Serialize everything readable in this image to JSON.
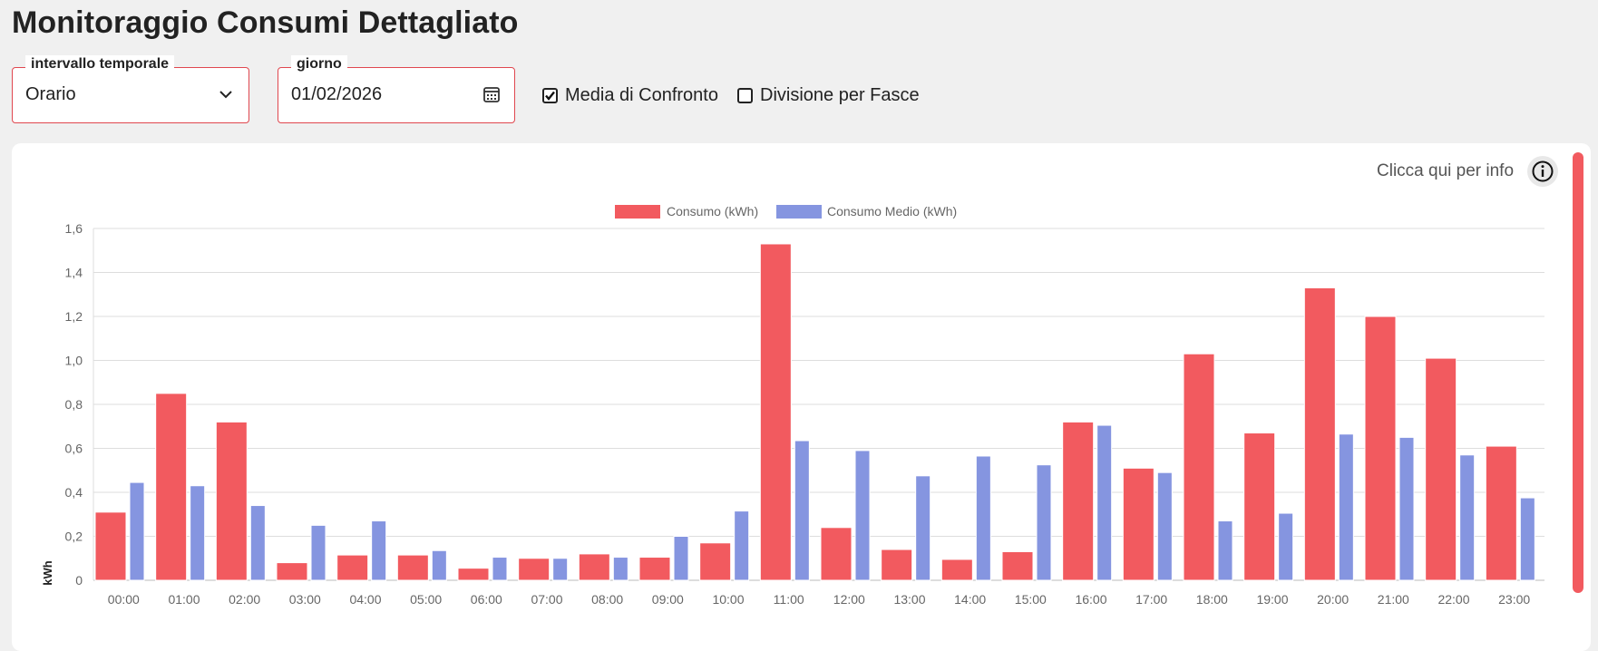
{
  "title": "Monitoraggio Consumi Dettagliato",
  "controls": {
    "interval": {
      "label": "intervallo temporale",
      "value": "Orario"
    },
    "day": {
      "label": "giorno",
      "value": "01/02/2026"
    },
    "media_confronto": {
      "label": "Media di Confronto",
      "checked": true
    },
    "divisione_fasce": {
      "label": "Divisione per Fasce",
      "checked": false
    }
  },
  "info": {
    "text": "Clicca qui per info",
    "icon": "info-icon"
  },
  "colors": {
    "consumo": "#f25a5f",
    "medio": "#8595e0",
    "accent": "#e0474f"
  },
  "chart_data": {
    "type": "bar",
    "categories": [
      "00:00",
      "01:00",
      "02:00",
      "03:00",
      "04:00",
      "05:00",
      "06:00",
      "07:00",
      "08:00",
      "09:00",
      "10:00",
      "11:00",
      "12:00",
      "13:00",
      "14:00",
      "15:00",
      "16:00",
      "17:00",
      "18:00",
      "19:00",
      "20:00",
      "21:00",
      "22:00",
      "23:00"
    ],
    "series": [
      {
        "name": "Consumo (kWh)",
        "color": "#f25a5f",
        "values": [
          0.31,
          0.85,
          0.72,
          0.08,
          0.115,
          0.115,
          0.055,
          0.1,
          0.12,
          0.105,
          0.17,
          1.53,
          0.24,
          0.14,
          0.095,
          0.13,
          0.72,
          0.51,
          1.03,
          0.67,
          1.33,
          1.2,
          1.01,
          0.61
        ]
      },
      {
        "name": "Consumo Medio (kWh)",
        "color": "#8595e0",
        "values": [
          0.445,
          0.43,
          0.34,
          0.25,
          0.27,
          0.135,
          0.105,
          0.1,
          0.105,
          0.2,
          0.315,
          0.635,
          0.59,
          0.475,
          0.565,
          0.525,
          0.705,
          0.49,
          0.27,
          0.305,
          0.665,
          0.65,
          0.57,
          0.375
        ]
      }
    ],
    "ylabel": "kWh",
    "ylim": [
      0,
      1.6
    ],
    "yticks": [
      "0",
      "0,2",
      "0,4",
      "0,6",
      "0,8",
      "1,0",
      "1,2",
      "1,4",
      "1,6"
    ],
    "grid": true,
    "legend": "top-center"
  }
}
